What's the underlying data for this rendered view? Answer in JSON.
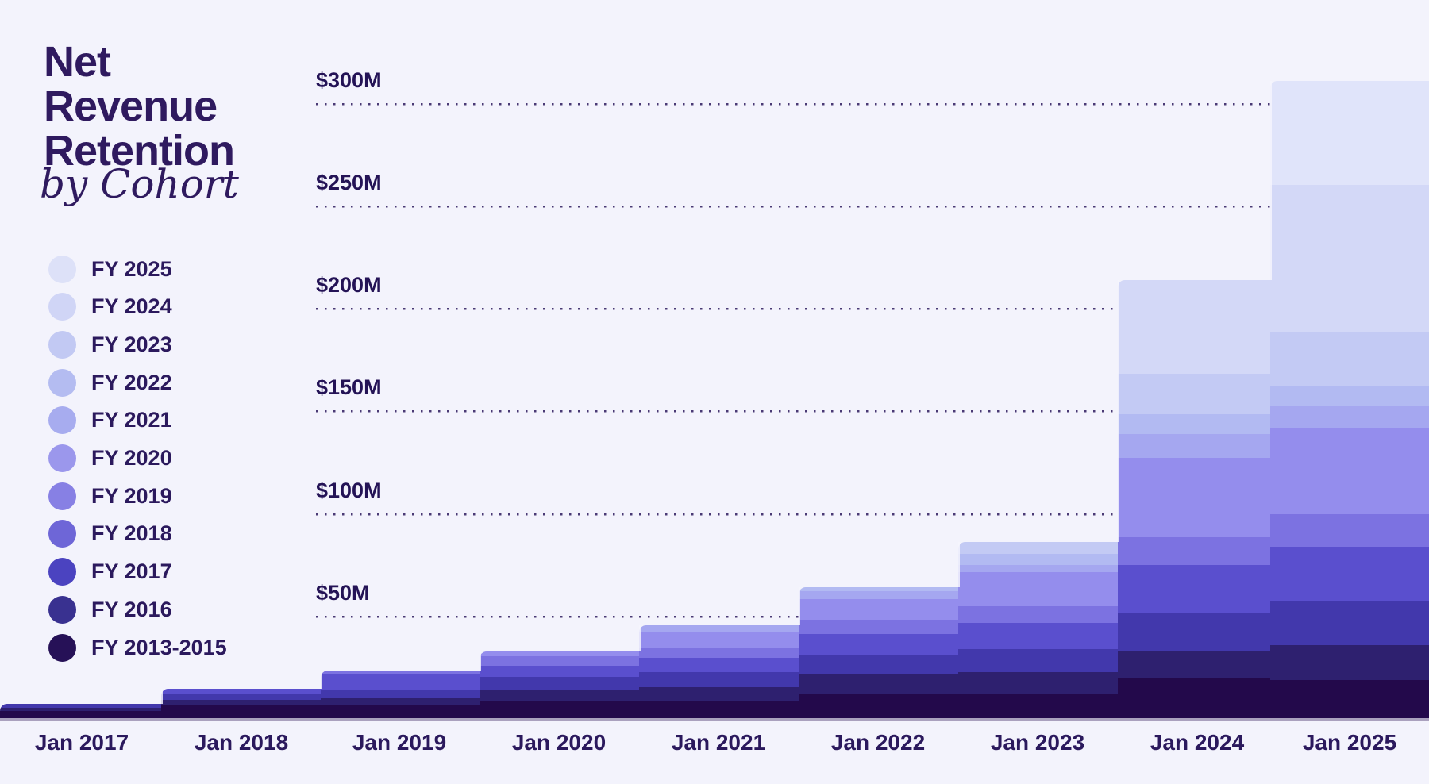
{
  "title": {
    "lines": [
      "Net",
      "Revenue",
      "Retention"
    ],
    "subtitle": "by Cohort"
  },
  "legend": [
    {
      "label": "FY 2025",
      "color": "#DDE1F8"
    },
    {
      "label": "FY 2024",
      "color": "#D0D5F6"
    },
    {
      "label": "FY 2023",
      "color": "#C2C9F3"
    },
    {
      "label": "FY 2022",
      "color": "#B4BCF1"
    },
    {
      "label": "FY 2021",
      "color": "#A7ACEF"
    },
    {
      "label": "FY 2020",
      "color": "#9B97EC"
    },
    {
      "label": "FY 2019",
      "color": "#8780E4"
    },
    {
      "label": "FY 2018",
      "color": "#6E66D7"
    },
    {
      "label": "FY 2017",
      "color": "#4B43C0"
    },
    {
      "label": "FY 2016",
      "color": "#393190"
    },
    {
      "label": "FY 2013-2015",
      "color": "#261157"
    }
  ],
  "chart_data": {
    "type": "area",
    "variant": "stacked-step-cohort",
    "title": "Net Revenue Retention by Cohort",
    "unit": "USD millions",
    "x_labels": [
      "Jan 2017",
      "Jan 2018",
      "Jan 2019",
      "Jan 2020",
      "Jan 2021",
      "Jan 2022",
      "Jan 2023",
      "Jan 2024",
      "Jan 2025"
    ],
    "y_ticks": [
      {
        "label": "$50M",
        "value": 50
      },
      {
        "label": "$100M",
        "value": 100
      },
      {
        "label": "$150M",
        "value": 150
      },
      {
        "label": "$200M",
        "value": 200
      },
      {
        "label": "$250M",
        "value": 250
      },
      {
        "label": "$300M",
        "value": 300
      }
    ],
    "ylim": [
      0,
      310
    ],
    "gridlines": "dotted-horizontal",
    "legend_position": "left",
    "series": [
      {
        "name": "FY 2013-2015",
        "color": "#23094B",
        "values": [
          3.5,
          6.0,
          6.0,
          8.0,
          8.5,
          11.5,
          12.0,
          19.5,
          18.5
        ]
      },
      {
        "name": "FY 2016",
        "color": "#2E206F",
        "values": [
          1.5,
          3.0,
          3.5,
          6.0,
          6.5,
          10.0,
          10.5,
          13.5,
          17.0
        ]
      },
      {
        "name": "FY 2017",
        "color": "#4238AC",
        "values": [
          2.0,
          3.0,
          4.5,
          6.0,
          7.5,
          9.0,
          11.0,
          18.0,
          21.5
        ]
      },
      {
        "name": "FY 2018",
        "color": "#5A4FCE",
        "values": [
          0,
          2.3,
          7.5,
          5.5,
          7.0,
          10.5,
          13.0,
          23.5,
          26.5
        ]
      },
      {
        "name": "FY 2019",
        "color": "#7C72E1",
        "values": [
          0,
          0,
          1.7,
          4.5,
          5.0,
          7.0,
          8.0,
          13.5,
          16.0
        ]
      },
      {
        "name": "FY 2020",
        "color": "#948DED",
        "values": [
          0,
          0,
          0,
          2.5,
          7.8,
          10.0,
          16.5,
          39.0,
          42.0
        ]
      },
      {
        "name": "FY 2021",
        "color": "#A5A7F0",
        "values": [
          0,
          0,
          0,
          0,
          3.0,
          4.0,
          3.5,
          11.5,
          10.5
        ]
      },
      {
        "name": "FY 2022",
        "color": "#B2BAF2",
        "values": [
          0,
          0,
          0,
          0,
          0,
          2.0,
          5.5,
          9.5,
          10.0
        ]
      },
      {
        "name": "FY 2023",
        "color": "#C3CAF4",
        "values": [
          0,
          0,
          0,
          0,
          0,
          0,
          6.0,
          20.0,
          26.5
        ]
      },
      {
        "name": "FY 2024",
        "color": "#D3D8F7",
        "values": [
          0,
          0,
          0,
          0,
          0,
          0,
          0,
          45.5,
          71.5
        ]
      },
      {
        "name": "FY 2025",
        "color": "#E0E4FA",
        "values": [
          0,
          0,
          0,
          0,
          0,
          0,
          0,
          0,
          50.5
        ]
      }
    ],
    "column_totals": [
      7.0,
      14.3,
      23.2,
      32.5,
      45.3,
      64.0,
      86.0,
      213.5,
      310.5
    ]
  },
  "colors": {
    "background": "#F3F3FC",
    "text": "#2B195D"
  }
}
